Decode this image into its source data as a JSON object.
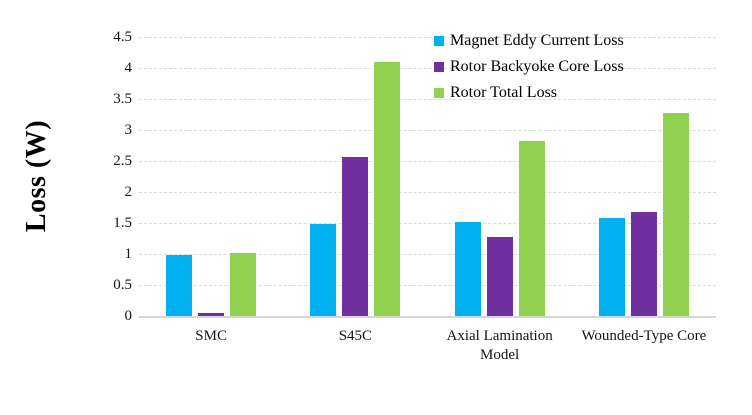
{
  "chart_data": {
    "type": "bar",
    "title": "",
    "xlabel": "",
    "ylabel": "Loss (W)",
    "ylim": [
      0,
      4.5
    ],
    "ytick_step": 0.5,
    "yticks": [
      {
        "value": 0,
        "label": "0"
      },
      {
        "value": 0.5,
        "label": "0.5"
      },
      {
        "value": 1,
        "label": "1"
      },
      {
        "value": 1.5,
        "label": "1.5"
      },
      {
        "value": 2,
        "label": "2"
      },
      {
        "value": 2.5,
        "label": "2.5"
      },
      {
        "value": 3,
        "label": "3"
      },
      {
        "value": 3.5,
        "label": "3.5"
      },
      {
        "value": 4,
        "label": "4"
      },
      {
        "value": 4.5,
        "label": "4.5"
      }
    ],
    "categories": [
      "SMC",
      "S45C",
      "Axial Lamination Model",
      "Wounded-Type Core"
    ],
    "series": [
      {
        "name": "Magnet Eddy Current Loss",
        "color": "#00B0F0",
        "values": [
          0.98,
          1.48,
          1.52,
          1.58
        ]
      },
      {
        "name": "Rotor Backyoke Core Loss",
        "color": "#7030A0",
        "values": [
          0.05,
          2.57,
          1.28,
          1.67
        ]
      },
      {
        "name": "Rotor Total Loss",
        "color": "#92D050",
        "values": [
          1.02,
          4.1,
          2.83,
          3.28
        ]
      }
    ],
    "grid": "horizontal-dashed",
    "gridline_color": "#D9D9D9",
    "axis_line_color": "#D6D6D6",
    "legend_position": "top-right",
    "background_color": "#FFFFFF"
  }
}
